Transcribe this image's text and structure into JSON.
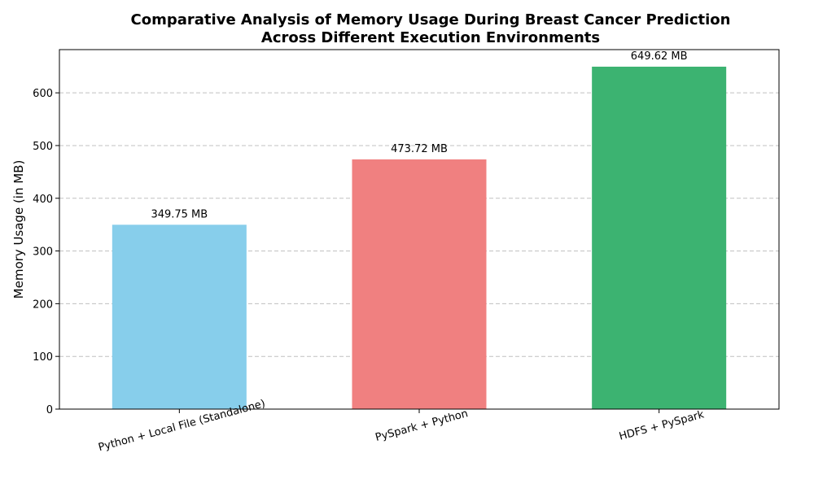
{
  "chart_data": {
    "type": "bar",
    "title_lines": [
      "Comparative Analysis of Memory Usage During Breast Cancer Prediction",
      "Across Different Execution Environments"
    ],
    "xlabel": "",
    "ylabel": "Memory Usage (in MB)",
    "categories": [
      "Python + Local File (Standalone)",
      "PySpark + Python",
      "HDFS + PySpark"
    ],
    "values": [
      349.75,
      473.72,
      649.62
    ],
    "value_labels": [
      "349.75 MB",
      "473.72 MB",
      "649.62 MB"
    ],
    "colors": [
      "#87CEEB",
      "#F08080",
      "#3CB371"
    ],
    "ylim": [
      0,
      682
    ],
    "yticks": [
      0,
      100,
      200,
      300,
      400,
      500,
      600
    ],
    "ygrid": true,
    "legend": "none"
  }
}
